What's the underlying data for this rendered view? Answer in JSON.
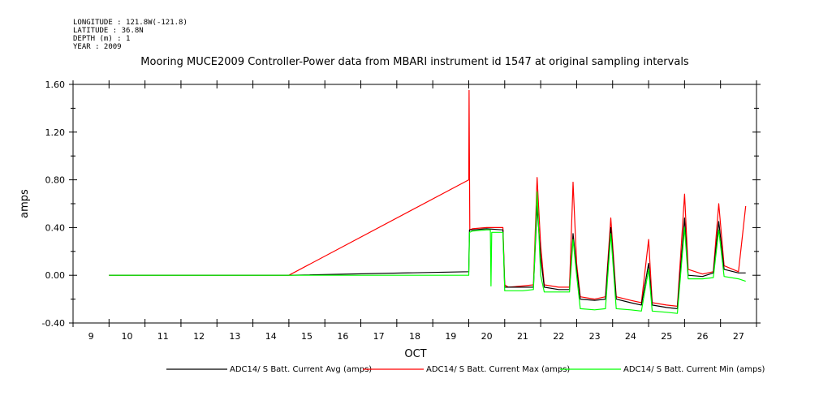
{
  "header": {
    "lines": [
      "LONGITUDE : 121.8W(-121.8)",
      "LATITUDE : 36.8N",
      "DEPTH (m) : 1",
      "YEAR : 2009"
    ]
  },
  "chart_data": {
    "type": "line",
    "title": "Mooring MUCE2009 Controller-Power data from MBARI instrument id 1547 at original sampling intervals",
    "xlabel": "OCT",
    "ylabel": "amps",
    "xlim": [
      8.5,
      27.5
    ],
    "ylim": [
      -0.4,
      1.6
    ],
    "x_ticks": [
      9,
      10,
      11,
      12,
      13,
      14,
      15,
      16,
      17,
      18,
      19,
      20,
      21,
      22,
      23,
      24,
      25,
      26,
      27
    ],
    "y_ticks": [
      -0.4,
      0.0,
      0.4,
      0.8,
      1.2,
      1.6
    ],
    "y_tick_labels": [
      "-0.40",
      "0.00",
      "0.40",
      "0.80",
      "1.20",
      "1.60"
    ],
    "grid": false,
    "legend_position": "bottom",
    "series": [
      {
        "name": "ADC14/ S Batt. Current Avg (amps)",
        "color": "#000000",
        "x": [
          9.5,
          14.5,
          19.5,
          19.52,
          19.6,
          20.0,
          20.45,
          20.5,
          20.6,
          21.0,
          21.3,
          21.4,
          21.5,
          21.6,
          22.0,
          22.3,
          22.4,
          22.5,
          22.6,
          23.0,
          23.3,
          23.45,
          23.6,
          24.0,
          24.3,
          24.5,
          24.6,
          25.0,
          25.3,
          25.5,
          25.6,
          26.0,
          26.3,
          26.45,
          26.6,
          27.0,
          27.2
        ],
        "y": [
          0.0,
          0.0,
          0.03,
          0.38,
          0.38,
          0.39,
          0.38,
          -0.1,
          -0.1,
          -0.1,
          -0.1,
          0.58,
          0.15,
          -0.1,
          -0.12,
          -0.12,
          0.35,
          0.05,
          -0.2,
          -0.21,
          -0.2,
          0.4,
          -0.2,
          -0.23,
          -0.25,
          0.1,
          -0.25,
          -0.27,
          -0.28,
          0.48,
          0.0,
          -0.01,
          0.02,
          0.45,
          0.05,
          0.02,
          0.02
        ]
      },
      {
        "name": "ADC14/ S Batt. Current Max (amps)",
        "color": "#ff0000",
        "x": [
          9.5,
          14.5,
          19.5,
          19.51,
          19.53,
          19.6,
          20.0,
          20.45,
          20.5,
          20.6,
          21.0,
          21.3,
          21.4,
          21.5,
          21.6,
          22.0,
          22.3,
          22.4,
          22.5,
          22.6,
          23.0,
          23.3,
          23.45,
          23.6,
          24.0,
          24.3,
          24.5,
          24.6,
          25.0,
          25.3,
          25.5,
          25.6,
          26.0,
          26.3,
          26.45,
          26.6,
          27.0,
          27.2
        ],
        "y": [
          0.0,
          0.0,
          0.8,
          1.55,
          0.38,
          0.39,
          0.4,
          0.4,
          -0.08,
          -0.1,
          -0.09,
          -0.08,
          0.82,
          0.25,
          -0.08,
          -0.1,
          -0.1,
          0.78,
          0.1,
          -0.18,
          -0.2,
          -0.18,
          0.48,
          -0.18,
          -0.21,
          -0.23,
          0.3,
          -0.23,
          -0.25,
          -0.26,
          0.68,
          0.05,
          0.01,
          0.03,
          0.6,
          0.08,
          0.03,
          0.58
        ]
      },
      {
        "name": "ADC14/ S Batt. Current Min (amps)",
        "color": "#00ff00",
        "x": [
          9.5,
          14.5,
          19.5,
          19.52,
          19.6,
          20.0,
          20.1,
          20.12,
          20.14,
          20.45,
          20.5,
          20.6,
          21.0,
          21.3,
          21.4,
          21.5,
          21.6,
          22.0,
          22.3,
          22.4,
          22.5,
          22.6,
          23.0,
          23.3,
          23.45,
          23.6,
          24.0,
          24.3,
          24.5,
          24.6,
          25.0,
          25.3,
          25.5,
          25.6,
          26.0,
          26.3,
          26.45,
          26.6,
          27.0,
          27.2
        ],
        "y": [
          0.0,
          0.0,
          0.0,
          0.36,
          0.37,
          0.38,
          0.38,
          -0.09,
          0.36,
          0.36,
          -0.13,
          -0.13,
          -0.13,
          -0.12,
          0.7,
          0.0,
          -0.14,
          -0.14,
          -0.14,
          0.3,
          0.0,
          -0.28,
          -0.29,
          -0.28,
          0.35,
          -0.28,
          -0.29,
          -0.3,
          0.05,
          -0.3,
          -0.31,
          -0.32,
          0.4,
          -0.03,
          -0.03,
          -0.02,
          0.38,
          -0.01,
          -0.03,
          -0.05
        ]
      }
    ]
  }
}
